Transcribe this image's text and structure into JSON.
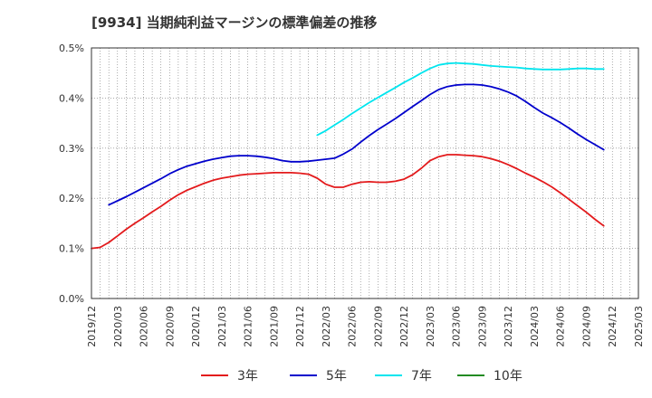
{
  "chart_data": {
    "type": "line",
    "title": "[9934]  当期純利益マージンの標準偏差の推移",
    "xlabel": "",
    "ylabel": "",
    "x_ticks": [
      "2019/12",
      "2020/03",
      "2020/06",
      "2020/09",
      "2020/12",
      "2021/03",
      "2021/06",
      "2021/09",
      "2021/12",
      "2022/03",
      "2022/06",
      "2022/09",
      "2022/12",
      "2023/03",
      "2023/06",
      "2023/09",
      "2023/12",
      "2024/03",
      "2024/06",
      "2024/09",
      "2024/12",
      "2025/03"
    ],
    "y_ticks": [
      "0.0%",
      "0.1%",
      "0.2%",
      "0.3%",
      "0.4%",
      "0.5%"
    ],
    "ylim": [
      0,
      0.5
    ],
    "grid": true,
    "legend_position": "bottom",
    "series": [
      {
        "name": "3年",
        "color": "#e31a1c",
        "start": "2019/12",
        "values": [
          0.1,
          0.102,
          0.112,
          0.125,
          0.138,
          0.15,
          0.161,
          0.173,
          0.184,
          0.196,
          0.207,
          0.216,
          0.223,
          0.23,
          0.236,
          0.24,
          0.243,
          0.246,
          0.248,
          0.249,
          0.25,
          0.251,
          0.251,
          0.251,
          0.25,
          0.248,
          0.24,
          0.228,
          0.222,
          0.222,
          0.228,
          0.232,
          0.233,
          0.232,
          0.232,
          0.234,
          0.238,
          0.247,
          0.26,
          0.275,
          0.283,
          0.287,
          0.287,
          0.286,
          0.285,
          0.283,
          0.279,
          0.274,
          0.267,
          0.259,
          0.25,
          0.242,
          0.233,
          0.223,
          0.211,
          0.198,
          0.185,
          0.172,
          0.158,
          0.145
        ]
      },
      {
        "name": "5年",
        "color": "#0000cc",
        "start": "2020/02",
        "values": [
          0.187,
          0.195,
          0.203,
          0.212,
          0.221,
          0.23,
          0.239,
          0.249,
          0.257,
          0.264,
          0.269,
          0.274,
          0.278,
          0.281,
          0.284,
          0.285,
          0.285,
          0.284,
          0.282,
          0.279,
          0.275,
          0.273,
          0.273,
          0.274,
          0.276,
          0.278,
          0.28,
          0.288,
          0.298,
          0.312,
          0.325,
          0.337,
          0.348,
          0.359,
          0.371,
          0.383,
          0.395,
          0.407,
          0.417,
          0.423,
          0.426,
          0.427,
          0.427,
          0.426,
          0.423,
          0.418,
          0.412,
          0.404,
          0.393,
          0.381,
          0.37,
          0.361,
          0.351,
          0.34,
          0.328,
          0.317,
          0.307,
          0.297
        ]
      },
      {
        "name": "7年",
        "color": "#00e5ee",
        "start": "2022/02",
        "values": [
          0.326,
          0.335,
          0.346,
          0.357,
          0.369,
          0.38,
          0.391,
          0.401,
          0.411,
          0.421,
          0.431,
          0.44,
          0.45,
          0.459,
          0.466,
          0.469,
          0.47,
          0.469,
          0.468,
          0.466,
          0.464,
          0.463,
          0.462,
          0.461,
          0.459,
          0.458,
          0.457,
          0.457,
          0.457,
          0.458,
          0.459,
          0.459,
          0.458,
          0.458
        ]
      },
      {
        "name": "10年",
        "color": "#228b22",
        "start": "2019/12",
        "values": []
      }
    ]
  }
}
